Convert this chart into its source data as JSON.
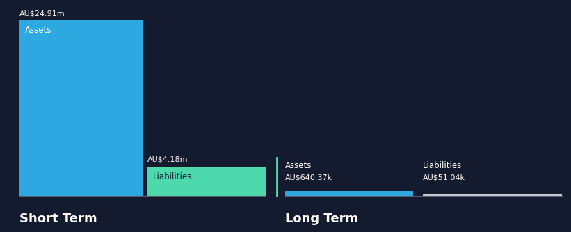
{
  "background_color": "#151b2e",
  "text_color": "#ffffff",
  "short_term_assets_value": 24.91,
  "short_term_liabilities_value": 4.18,
  "long_term_assets_value": 640.37,
  "long_term_liabilities_value": 51.04,
  "short_term_assets_label": "Assets",
  "short_term_liabilities_label": "Liabilities",
  "long_term_assets_label": "Assets",
  "long_term_liabilities_label": "Liabilities",
  "short_term_assets_display": "AU$24.91m",
  "short_term_liabilities_display": "AU$4.18m",
  "long_term_assets_display": "AU$640.37k",
  "long_term_liabilities_display": "AU$51.04k",
  "short_term_title": "Short Term",
  "long_term_title": "Long Term",
  "assets_color": "#2ea8e0",
  "liabilities_color": "#4dd9ac",
  "lt_assets_color": "#2ea8e0",
  "lt_liabilities_color": "#c8cdd8",
  "baseline_color": "#555c70",
  "divider_color": "#4dd9ac"
}
